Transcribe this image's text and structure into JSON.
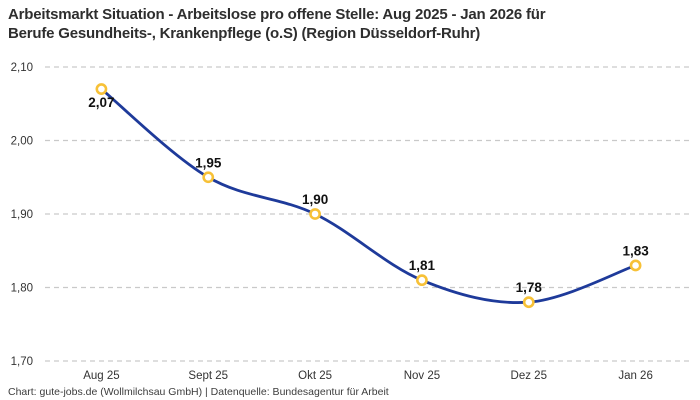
{
  "header": {
    "title_line1": "Arbeitsmarkt Situation - Arbeitslose pro offene Stelle: Aug 2025 - Jan 2026 für",
    "title_line2": "Berufe Gesundheits-, Krankenpflege (o.S) (Region Düsseldorf-Ruhr)"
  },
  "footer": {
    "text": "Chart: gute-jobs.de (Wollmilchsau GmbH) | Datenquelle: Bundesagentur für Arbeit"
  },
  "chart_data": {
    "type": "line",
    "title": "Arbeitsmarkt Situation - Arbeitslose pro offene Stelle: Aug 2025 - Jan 2026 für Berufe Gesundheits-, Krankenpflege (o.S) (Region Düsseldorf-Ruhr)",
    "categories": [
      "Aug 25",
      "Sept 25",
      "Okt 25",
      "Nov 25",
      "Dez 25",
      "Jan 26"
    ],
    "values": [
      2.07,
      1.95,
      1.9,
      1.81,
      1.78,
      1.83
    ],
    "value_labels": [
      "2,07",
      "1,95",
      "1,90",
      "1,81",
      "1,78",
      "1,83"
    ],
    "value_label_positions": [
      "below",
      "above",
      "above",
      "above",
      "above",
      "above"
    ],
    "y_ticks": [
      2.1,
      2.0,
      1.9,
      1.8,
      1.7
    ],
    "y_tick_labels": [
      "2,10",
      "2,00",
      "1,90",
      "1,80",
      "1,70"
    ],
    "ylim": [
      1.7,
      2.1
    ],
    "xlabel": "",
    "ylabel": "",
    "grid": "horizontal-dashed",
    "legend": "none",
    "colors": {
      "line": "#1e3a9a",
      "marker_ring": "#f7c137",
      "marker_fill": "#ffffff",
      "gridline": "#c9c9c9",
      "axis_text": "#333333",
      "data_label": "#111111"
    }
  }
}
